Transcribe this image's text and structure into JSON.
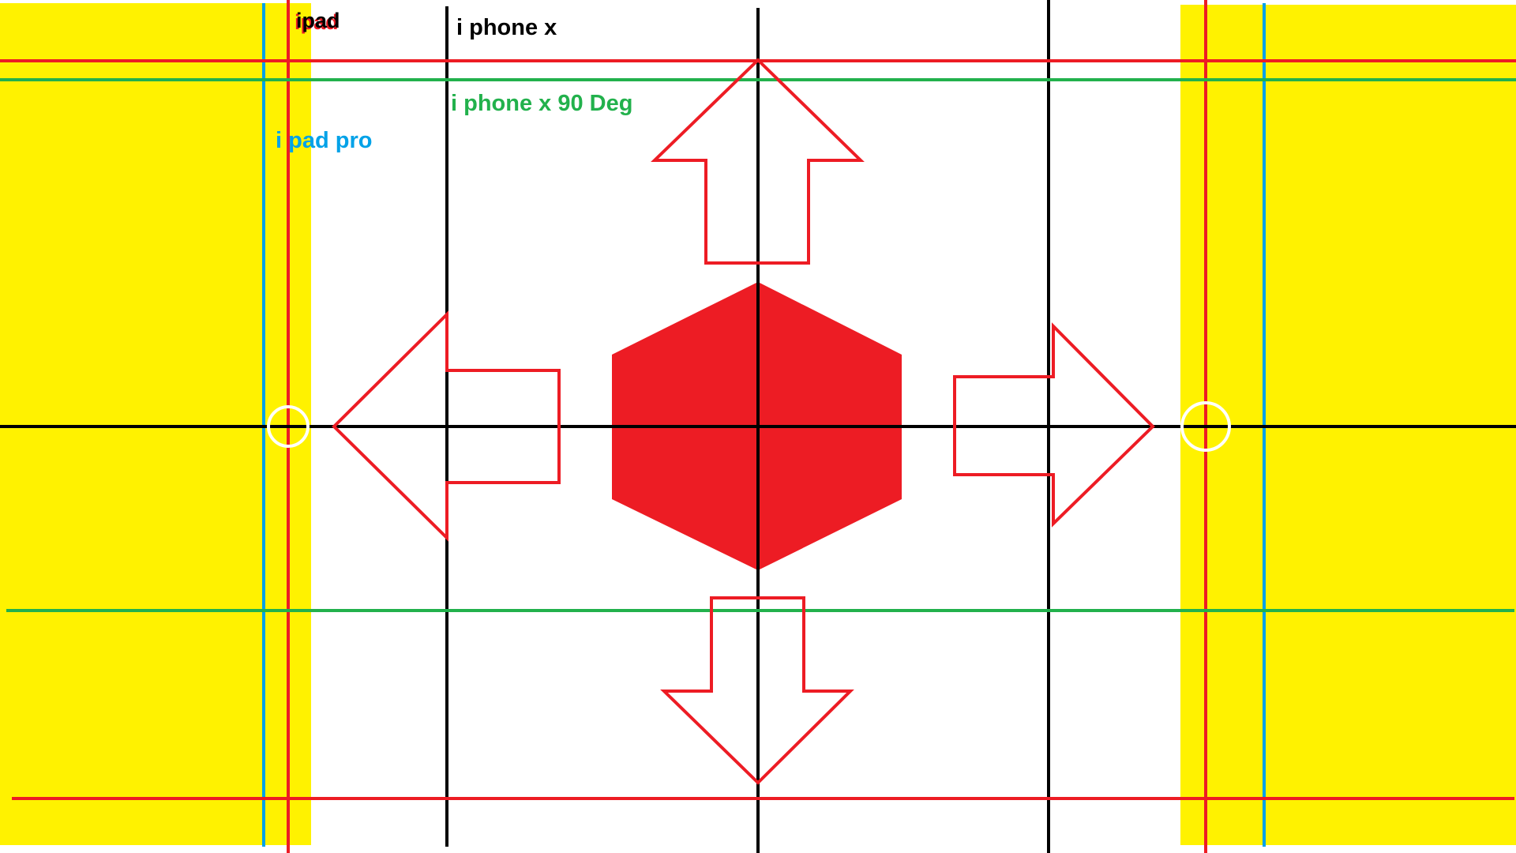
{
  "labels": {
    "ipad": "ipad",
    "iphone_x": "i phone x",
    "iphone_x_90": "i phone x 90 Deg",
    "ipad_pro": "i pad pro"
  },
  "colors": {
    "background": "#ffffff",
    "side_zone": "#fff200",
    "red": "#ed1c24",
    "black": "#000000",
    "green": "#22b14c",
    "blue": "#00a2e8",
    "marker": "#ffffff"
  },
  "shapes": {
    "center": "hexagon",
    "arrows": [
      "up-arrow",
      "down-arrow",
      "left-arrow",
      "right-arrow"
    ],
    "markers": [
      "left-center-marker",
      "right-center-marker"
    ]
  }
}
